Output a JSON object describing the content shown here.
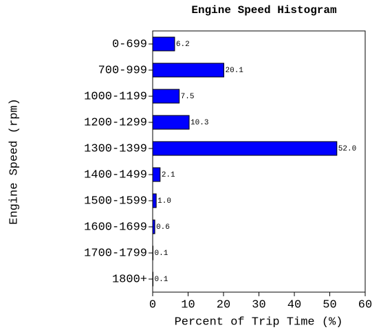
{
  "chart_data": {
    "type": "bar",
    "title": "Engine Speed Histogram",
    "xlabel": "Percent of Trip Time (%)",
    "ylabel": "Engine Speed (rpm)",
    "categories": [
      "0-699",
      "700-999",
      "1000-1199",
      "1200-1299",
      "1300-1399",
      "1400-1499",
      "1500-1599",
      "1600-1699",
      "1700-1799",
      "1800+"
    ],
    "values": [
      6.2,
      20.1,
      7.5,
      10.3,
      52.0,
      2.1,
      1.0,
      0.6,
      0.1,
      0.1
    ],
    "value_labels": [
      "6.2",
      "20.1",
      "7.5",
      "10.3",
      "52.0",
      "2.1",
      "1.0",
      "0.6",
      "0.1",
      "0.1"
    ],
    "color": "#0000ff",
    "xlim": [
      0,
      60
    ],
    "xticks": [
      0,
      10,
      20,
      30,
      40,
      50,
      60
    ]
  }
}
